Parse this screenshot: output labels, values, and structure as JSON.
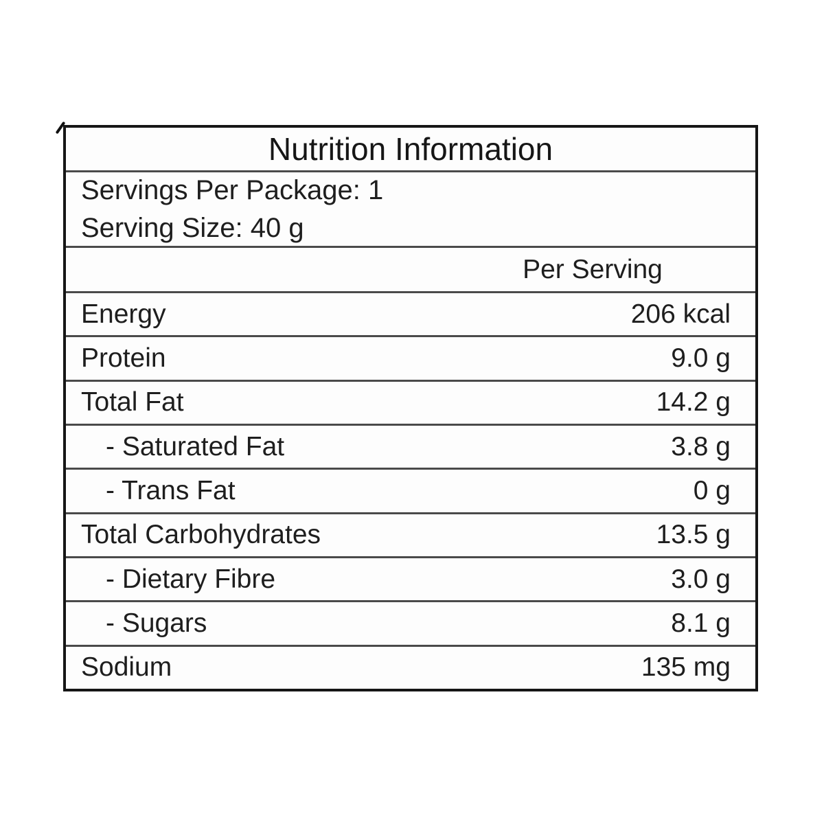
{
  "table": {
    "title": "Nutrition Information",
    "serving_info": {
      "servings_per_package": "Servings Per Package: 1",
      "serving_size": "Serving Size: 40 g"
    },
    "column_header": "Per Serving",
    "rows": [
      {
        "label": "Energy",
        "value": "206 kcal"
      },
      {
        "label": "Protein",
        "value": "9.0 g"
      },
      {
        "label": "Total Fat",
        "value": "14.2 g"
      },
      {
        "label": "- Saturated Fat",
        "value": "3.8 g"
      },
      {
        "label": "- Trans Fat",
        "value": "0 g"
      },
      {
        "label": "Total Carbohydrates",
        "value": "13.5 g"
      },
      {
        "label": "- Dietary Fibre",
        "value": "3.0 g"
      },
      {
        "label": "- Sugars",
        "value": "8.1 g"
      },
      {
        "label": "Sodium",
        "value": "135 mg"
      }
    ],
    "colors": {
      "border_outer": "#161616",
      "border_separator": "#4a4a4a",
      "text": "#1e1e1e",
      "background": "#ffffff"
    }
  }
}
